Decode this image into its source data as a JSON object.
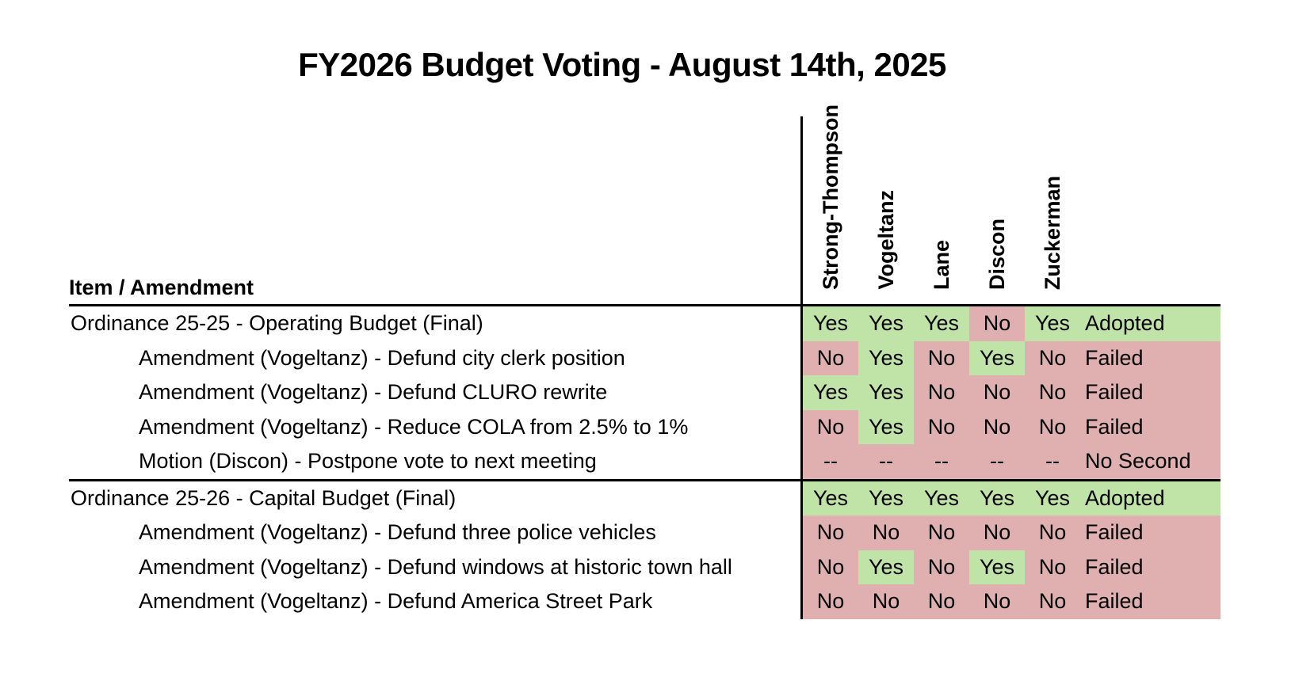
{
  "title": "FY2026 Budget Voting - August 14th, 2025",
  "chart_data": {
    "type": "table",
    "title": "FY2026 Budget Voting - August 14th, 2025",
    "row_header": "Item / Amendment",
    "voter_columns": [
      "Strong-Thompson",
      "Vogeltanz",
      "Lane",
      "Discon",
      "Zuckerman"
    ],
    "rows": [
      {
        "item": "Ordinance 25-25 - Operating Budget (Final)",
        "indent": false,
        "new_section": false,
        "votes": [
          "Yes",
          "Yes",
          "Yes",
          "No",
          "Yes"
        ],
        "result": "Adopted"
      },
      {
        "item": "Amendment (Vogeltanz) - Defund city clerk position",
        "indent": true,
        "new_section": false,
        "votes": [
          "No",
          "Yes",
          "No",
          "Yes",
          "No"
        ],
        "result": "Failed"
      },
      {
        "item": "Amendment (Vogeltanz) - Defund CLURO rewrite",
        "indent": true,
        "new_section": false,
        "votes": [
          "Yes",
          "Yes",
          "No",
          "No",
          "No"
        ],
        "result": "Failed"
      },
      {
        "item": "Amendment (Vogeltanz) - Reduce COLA from 2.5% to 1%",
        "indent": true,
        "new_section": false,
        "votes": [
          "No",
          "Yes",
          "No",
          "No",
          "No"
        ],
        "result": "Failed"
      },
      {
        "item": "Motion (Discon) - Postpone vote to next meeting",
        "indent": true,
        "new_section": false,
        "votes": [
          "--",
          "--",
          "--",
          "--",
          "--"
        ],
        "result": "No Second"
      },
      {
        "item": "Ordinance 25-26 - Capital Budget (Final)",
        "indent": false,
        "new_section": true,
        "votes": [
          "Yes",
          "Yes",
          "Yes",
          "Yes",
          "Yes"
        ],
        "result": "Adopted"
      },
      {
        "item": "Amendment (Vogeltanz) - Defund three police vehicles",
        "indent": true,
        "new_section": false,
        "votes": [
          "No",
          "No",
          "No",
          "No",
          "No"
        ],
        "result": "Failed"
      },
      {
        "item": "Amendment (Vogeltanz) - Defund windows at historic town hall",
        "indent": true,
        "new_section": false,
        "votes": [
          "No",
          "Yes",
          "No",
          "Yes",
          "No"
        ],
        "result": "Failed"
      },
      {
        "item": "Amendment (Vogeltanz) - Defund America Street Park",
        "indent": true,
        "new_section": false,
        "votes": [
          "No",
          "No",
          "No",
          "No",
          "No"
        ],
        "result": "Failed"
      }
    ]
  },
  "colors": {
    "yes_fill": "#c0e3a8",
    "no_fill": "#e0b0b0",
    "result_adopted_fill": "#c0e3a8",
    "result_failed_fill": "#e0b0b0",
    "result_no_second_fill": "#e0b0b0",
    "text": "#000000",
    "line": "#000000",
    "background": "#ffffff"
  }
}
